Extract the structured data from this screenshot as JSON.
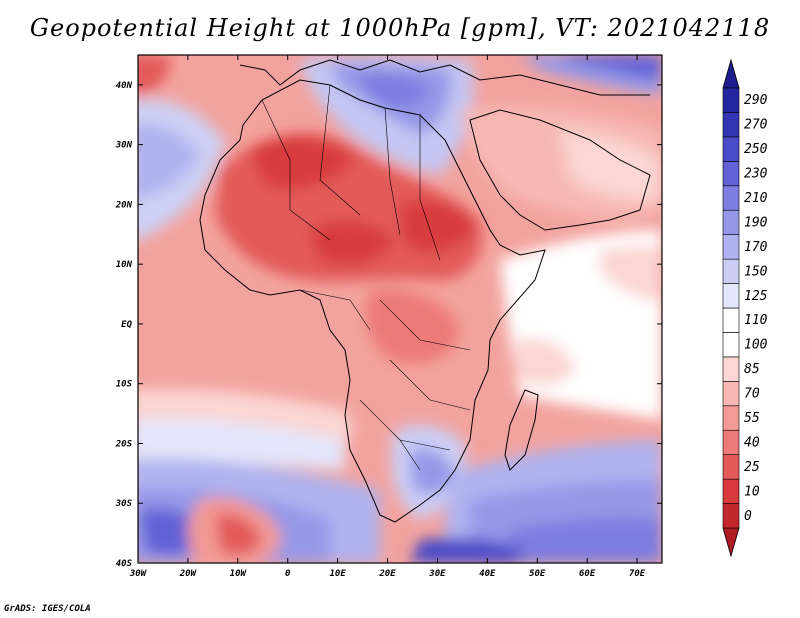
{
  "title": "Geopotential Height at 1000hPa [gpm], VT: 2021042118",
  "credit": "GrADS: IGES/COLA",
  "map": {
    "lon_range": [
      -30,
      75
    ],
    "lat_range": [
      -40,
      45
    ],
    "lon_ticks": [
      {
        "value": -30,
        "label": "30W"
      },
      {
        "value": -20,
        "label": "20W"
      },
      {
        "value": -10,
        "label": "10W"
      },
      {
        "value": 0,
        "label": "0"
      },
      {
        "value": 10,
        "label": "10E"
      },
      {
        "value": 20,
        "label": "20E"
      },
      {
        "value": 30,
        "label": "30E"
      },
      {
        "value": 40,
        "label": "40E"
      },
      {
        "value": 50,
        "label": "50E"
      },
      {
        "value": 60,
        "label": "60E"
      },
      {
        "value": 70,
        "label": "70E"
      }
    ],
    "lat_ticks": [
      {
        "value": 40,
        "label": "40N"
      },
      {
        "value": 30,
        "label": "30N"
      },
      {
        "value": 20,
        "label": "20N"
      },
      {
        "value": 10,
        "label": "10N"
      },
      {
        "value": 0,
        "label": "EQ"
      },
      {
        "value": -10,
        "label": "10S"
      },
      {
        "value": -20,
        "label": "20S"
      },
      {
        "value": -30,
        "label": "30S"
      },
      {
        "value": -40,
        "label": "40S"
      }
    ]
  },
  "colorbar": {
    "levels": [
      "0",
      "10",
      "25",
      "40",
      "55",
      "70",
      "85",
      "100",
      "110",
      "125",
      "150",
      "170",
      "190",
      "210",
      "230",
      "250",
      "270",
      "290"
    ],
    "colors": [
      "#c2272d",
      "#d83a3e",
      "#e35a5a",
      "#ec7a78",
      "#f29a96",
      "#f7b8b3",
      "#fbd6d2",
      "#ffffff",
      "#ffffff",
      "#e4e6fb",
      "#cbcdf5",
      "#b0b3ef",
      "#9598e8",
      "#7b7de0",
      "#6062d6",
      "#4a4bc8",
      "#3435b5",
      "#2426a0"
    ],
    "top_arrow_color": "#1c1d8f",
    "bottom_arrow_color": "#b01c22"
  }
}
